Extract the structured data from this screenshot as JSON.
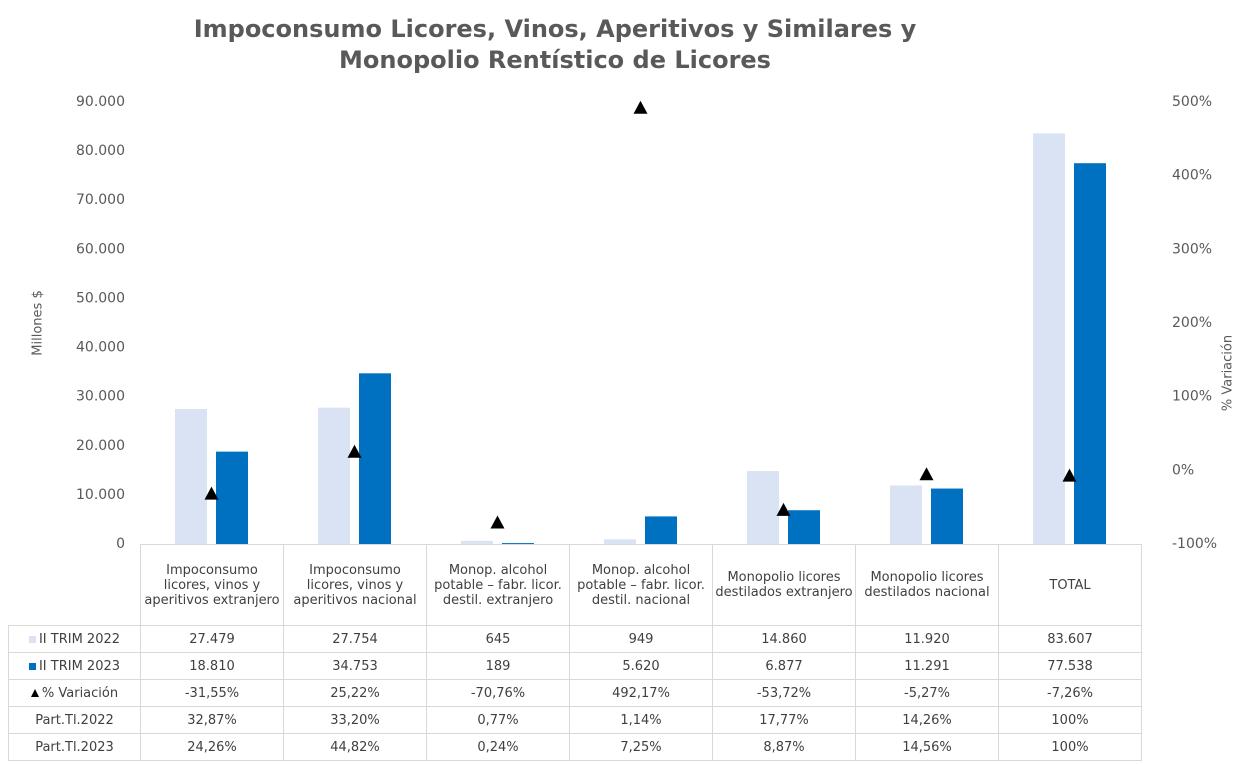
{
  "chart_data": {
    "type": "bar",
    "title": [
      "Impoconsumo Licores, Vinos, Aperitivos y Similares y",
      "Monopolio Rentístico de Licores"
    ],
    "ylabel": "Millones $",
    "y2label": "% Variación",
    "categories": [
      "Impoconsumo licores, vinos y aperitivos extranjero",
      "Impoconsumo licores, vinos y aperitivos nacional",
      "Monop. alcohol potable – fabr. licor. destil. extranjero",
      "Monop. alcohol potable – fabr. licor. destil. nacional",
      "Monopolio licores destilados extranjero",
      "Monopolio licores destilados nacional",
      "TOTAL"
    ],
    "series": [
      {
        "name": "II TRIM 2022",
        "color": "#dae3f3",
        "type": "bar",
        "values": [
          27479,
          27754,
          645,
          949,
          14860,
          11920,
          83607
        ],
        "value_labels": [
          "27.479",
          "27.754",
          "645",
          "949",
          "14.860",
          "11.920",
          "83.607"
        ]
      },
      {
        "name": "II TRIM 2023",
        "color": "#0070c0",
        "type": "bar",
        "values": [
          18810,
          34753,
          189,
          5620,
          6877,
          11291,
          77538
        ],
        "value_labels": [
          "18.810",
          "34.753",
          "189",
          "5.620",
          "6.877",
          "11.291",
          "77.538"
        ]
      },
      {
        "name": "% Variación",
        "color": "#000000",
        "type": "marker",
        "axis": "y2",
        "values": [
          -31.55,
          25.22,
          -70.76,
          492.17,
          -53.72,
          -5.27,
          -7.26
        ],
        "value_labels": [
          "-31,55%",
          "25,22%",
          "-70,76%",
          "492,17%",
          "-53,72%",
          "-5,27%",
          "-7,26%"
        ]
      }
    ],
    "table_rows": [
      {
        "name": "Part.Tl.2022",
        "values": [
          32.87,
          33.2,
          0.77,
          1.14,
          17.77,
          14.26,
          100
        ],
        "value_labels": [
          "32,87%",
          "33,20%",
          "0,77%",
          "1,14%",
          "17,77%",
          "14,26%",
          "100%"
        ]
      },
      {
        "name": "Part.Tl.2023",
        "values": [
          24.26,
          44.82,
          0.24,
          7.25,
          8.87,
          14.56,
          100
        ],
        "value_labels": [
          "24,26%",
          "44,82%",
          "0,24%",
          "7,25%",
          "8,87%",
          "14,56%",
          "100%"
        ]
      }
    ],
    "ylim": [
      0,
      90000
    ],
    "yticks": [
      0,
      {
        "value": 10000,
        "label": "10.000"
      },
      {
        "value": 20000,
        "label": "20.000"
      },
      {
        "value": 30000,
        "label": "30.000"
      },
      {
        "value": 40000,
        "label": "40.000"
      },
      {
        "value": 50000,
        "label": "50.000"
      },
      {
        "value": 60000,
        "label": "60.000"
      },
      {
        "value": 70000,
        "label": "70.000"
      },
      {
        "value": 80000,
        "label": "80.000"
      },
      {
        "value": 90000,
        "label": "90.000"
      }
    ],
    "y2lim": [
      -100,
      500
    ],
    "y2ticks": [
      {
        "value": -100,
        "label": "-100%"
      },
      {
        "value": 0,
        "label": "0%"
      },
      {
        "value": 100,
        "label": "100%"
      },
      {
        "value": 200,
        "label": "200%"
      },
      {
        "value": 300,
        "label": "300%"
      },
      {
        "value": 400,
        "label": "400%"
      },
      {
        "value": 500,
        "label": "500%"
      }
    ]
  }
}
